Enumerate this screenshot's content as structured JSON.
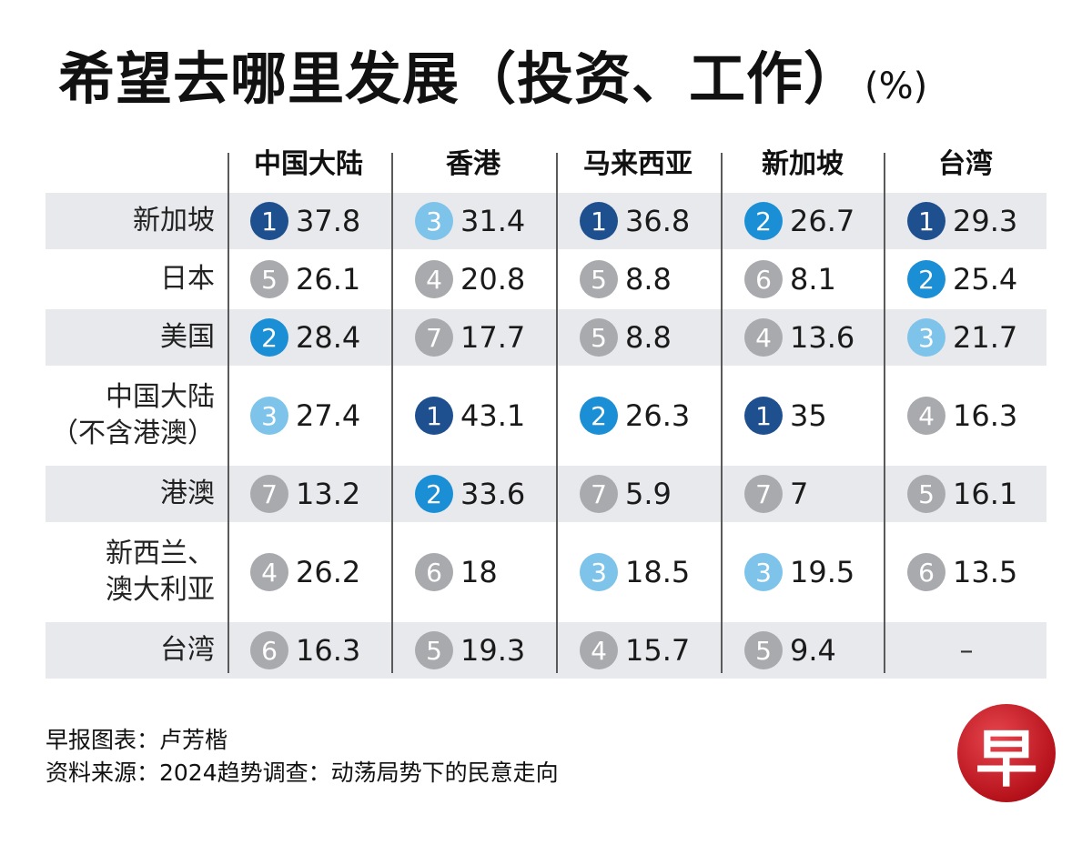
{
  "colors": {
    "rank1": "#1e4f8f",
    "rank2": "#1a8fd6",
    "rank3": "#7ec3ea",
    "rank_other": "#a9aaad",
    "row_shade": "#e8e9ec",
    "logo_red": "#c8151f"
  },
  "logo": {
    "glyph": "早"
  },
  "chart_data": {
    "type": "table",
    "title": "希望去哪里发展（投资、工作）",
    "unit": "(%)",
    "columns": [
      "中国大陆",
      "香港",
      "马来西亚",
      "新加坡",
      "台湾"
    ],
    "rows": [
      {
        "label": [
          "新加坡"
        ],
        "cells": [
          {
            "rank": "1",
            "value": "37.8"
          },
          {
            "rank": "3",
            "value": "31.4"
          },
          {
            "rank": "1",
            "value": "36.8"
          },
          {
            "rank": "2",
            "value": "26.7"
          },
          {
            "rank": "1",
            "value": "29.3"
          }
        ]
      },
      {
        "label": [
          "日本"
        ],
        "cells": [
          {
            "rank": "5",
            "value": "26.1"
          },
          {
            "rank": "4",
            "value": "20.8"
          },
          {
            "rank": "5",
            "value": "8.8"
          },
          {
            "rank": "6",
            "value": "8.1"
          },
          {
            "rank": "2",
            "value": "25.4"
          }
        ]
      },
      {
        "label": [
          "美国"
        ],
        "cells": [
          {
            "rank": "2",
            "value": "28.4"
          },
          {
            "rank": "7",
            "value": "17.7"
          },
          {
            "rank": "5",
            "value": "8.8"
          },
          {
            "rank": "4",
            "value": "13.6"
          },
          {
            "rank": "3",
            "value": "21.7"
          }
        ]
      },
      {
        "label": [
          "中国大陆",
          "（不含港澳）"
        ],
        "cells": [
          {
            "rank": "3",
            "value": "27.4"
          },
          {
            "rank": "1",
            "value": "43.1"
          },
          {
            "rank": "2",
            "value": "26.3"
          },
          {
            "rank": "1",
            "value": "35"
          },
          {
            "rank": "4",
            "value": "16.3"
          }
        ]
      },
      {
        "label": [
          "港澳"
        ],
        "cells": [
          {
            "rank": "7",
            "value": "13.2"
          },
          {
            "rank": "2",
            "value": "33.6"
          },
          {
            "rank": "7",
            "value": "5.9"
          },
          {
            "rank": "7",
            "value": "7"
          },
          {
            "rank": "5",
            "value": "16.1"
          }
        ]
      },
      {
        "label": [
          "新西兰、",
          "澳大利亚"
        ],
        "cells": [
          {
            "rank": "4",
            "value": "26.2"
          },
          {
            "rank": "6",
            "value": "18"
          },
          {
            "rank": "3",
            "value": "18.5"
          },
          {
            "rank": "3",
            "value": "19.5"
          },
          {
            "rank": "6",
            "value": "13.5"
          }
        ]
      },
      {
        "label": [
          "台湾"
        ],
        "cells": [
          {
            "rank": "6",
            "value": "16.3"
          },
          {
            "rank": "5",
            "value": "19.3"
          },
          {
            "rank": "4",
            "value": "15.7"
          },
          {
            "rank": "5",
            "value": "9.4"
          },
          {
            "rank": "",
            "value": "–"
          }
        ]
      }
    ]
  },
  "footer": {
    "credit": "早报图表：卢芳楷",
    "source": "资料来源：2024趋势调查：动荡局势下的民意走向"
  }
}
